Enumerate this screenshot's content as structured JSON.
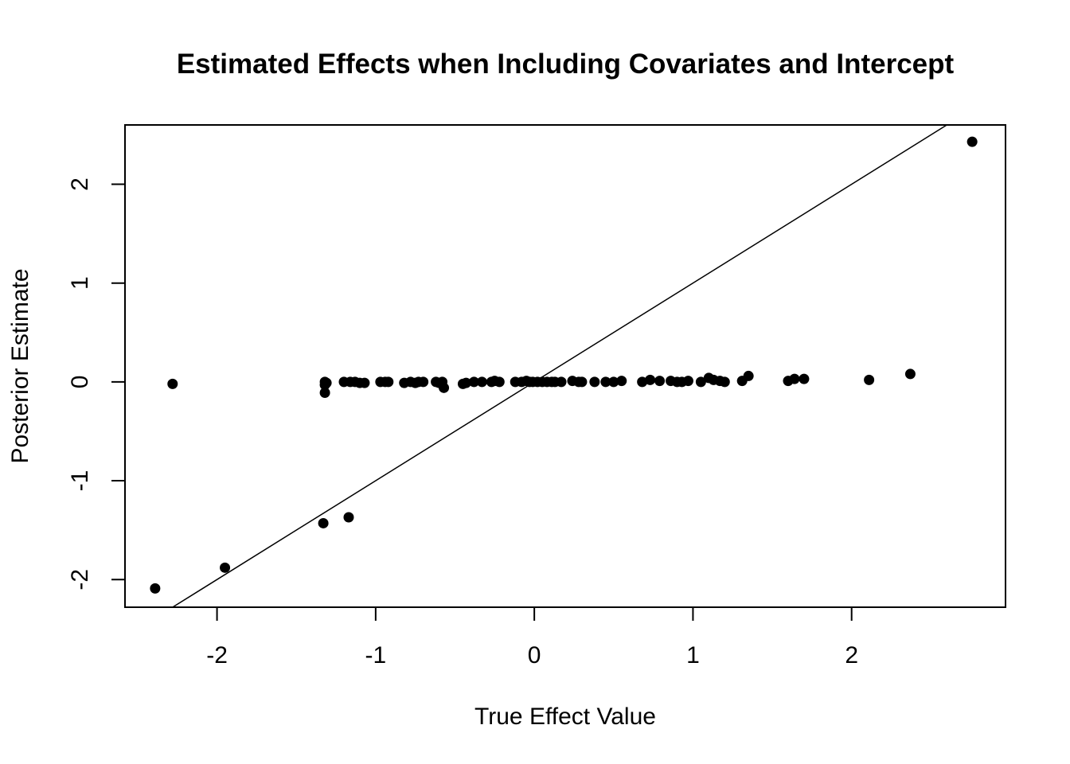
{
  "chart_data": {
    "type": "scatter",
    "title": "Estimated Effects when Including Covariates and Intercept",
    "xlabel": "True Effect Value",
    "ylabel": "Posterior Estimate",
    "xlim": [
      -2.58,
      2.97
    ],
    "ylim": [
      -2.28,
      2.6
    ],
    "x_ticks": [
      -2,
      -1,
      0,
      1,
      2
    ],
    "x_tick_labels": [
      "-2",
      "-1",
      "0",
      "1",
      "2"
    ],
    "y_ticks": [
      -2,
      -1,
      0,
      1,
      2
    ],
    "y_tick_labels": [
      "-2",
      "-1",
      "0",
      "1",
      "2"
    ],
    "grid": false,
    "reference_line": {
      "intercept": 0,
      "slope": 1
    },
    "point_color": "#000000",
    "points": [
      {
        "x": -2.39,
        "y": -2.09
      },
      {
        "x": -2.28,
        "y": -0.02
      },
      {
        "x": -1.95,
        "y": -1.88
      },
      {
        "x": -1.33,
        "y": -1.43
      },
      {
        "x": -1.32,
        "y": -0.11
      },
      {
        "x": -1.32,
        "y": -0.03
      },
      {
        "x": -1.32,
        "y": 0.0
      },
      {
        "x": -1.31,
        "y": -0.01
      },
      {
        "x": -1.17,
        "y": -1.37
      },
      {
        "x": -1.2,
        "y": 0.0
      },
      {
        "x": -1.16,
        "y": 0.0
      },
      {
        "x": -1.13,
        "y": 0.0
      },
      {
        "x": -1.1,
        "y": -0.01
      },
      {
        "x": -1.07,
        "y": -0.01
      },
      {
        "x": -0.97,
        "y": 0.0
      },
      {
        "x": -0.94,
        "y": 0.0
      },
      {
        "x": -0.92,
        "y": 0.0
      },
      {
        "x": -0.82,
        "y": -0.01
      },
      {
        "x": -0.78,
        "y": 0.0
      },
      {
        "x": -0.75,
        "y": -0.01
      },
      {
        "x": -0.73,
        "y": 0.0
      },
      {
        "x": -0.7,
        "y": 0.0
      },
      {
        "x": -0.62,
        "y": 0.0
      },
      {
        "x": -0.6,
        "y": -0.01
      },
      {
        "x": -0.58,
        "y": 0.0
      },
      {
        "x": -0.57,
        "y": -0.06
      },
      {
        "x": -0.45,
        "y": -0.02
      },
      {
        "x": -0.43,
        "y": -0.01
      },
      {
        "x": -0.38,
        "y": 0.0
      },
      {
        "x": -0.33,
        "y": 0.0
      },
      {
        "x": -0.27,
        "y": 0.0
      },
      {
        "x": -0.25,
        "y": 0.01
      },
      {
        "x": -0.22,
        "y": 0.0
      },
      {
        "x": -0.12,
        "y": 0.0
      },
      {
        "x": -0.08,
        "y": 0.0
      },
      {
        "x": -0.05,
        "y": 0.01
      },
      {
        "x": -0.03,
        "y": 0.0
      },
      {
        "x": -0.01,
        "y": 0.0
      },
      {
        "x": 0.02,
        "y": 0.0
      },
      {
        "x": 0.05,
        "y": 0.0
      },
      {
        "x": 0.08,
        "y": 0.0
      },
      {
        "x": 0.11,
        "y": 0.0
      },
      {
        "x": 0.13,
        "y": 0.0
      },
      {
        "x": 0.17,
        "y": 0.0
      },
      {
        "x": 0.24,
        "y": 0.01
      },
      {
        "x": 0.28,
        "y": 0.0
      },
      {
        "x": 0.3,
        "y": 0.0
      },
      {
        "x": 0.38,
        "y": 0.0
      },
      {
        "x": 0.45,
        "y": 0.0
      },
      {
        "x": 0.5,
        "y": 0.0
      },
      {
        "x": 0.55,
        "y": 0.01
      },
      {
        "x": 0.68,
        "y": 0.0
      },
      {
        "x": 0.73,
        "y": 0.02
      },
      {
        "x": 0.79,
        "y": 0.01
      },
      {
        "x": 0.86,
        "y": 0.01
      },
      {
        "x": 0.9,
        "y": 0.0
      },
      {
        "x": 0.93,
        "y": 0.0
      },
      {
        "x": 0.97,
        "y": 0.01
      },
      {
        "x": 1.05,
        "y": 0.0
      },
      {
        "x": 1.1,
        "y": 0.04
      },
      {
        "x": 1.13,
        "y": 0.02
      },
      {
        "x": 1.17,
        "y": 0.01
      },
      {
        "x": 1.2,
        "y": 0.0
      },
      {
        "x": 1.31,
        "y": 0.01
      },
      {
        "x": 1.35,
        "y": 0.06
      },
      {
        "x": 1.6,
        "y": 0.01
      },
      {
        "x": 1.64,
        "y": 0.03
      },
      {
        "x": 1.7,
        "y": 0.03
      },
      {
        "x": 2.11,
        "y": 0.02
      },
      {
        "x": 2.37,
        "y": 0.08
      },
      {
        "x": 2.76,
        "y": 2.43
      }
    ]
  }
}
